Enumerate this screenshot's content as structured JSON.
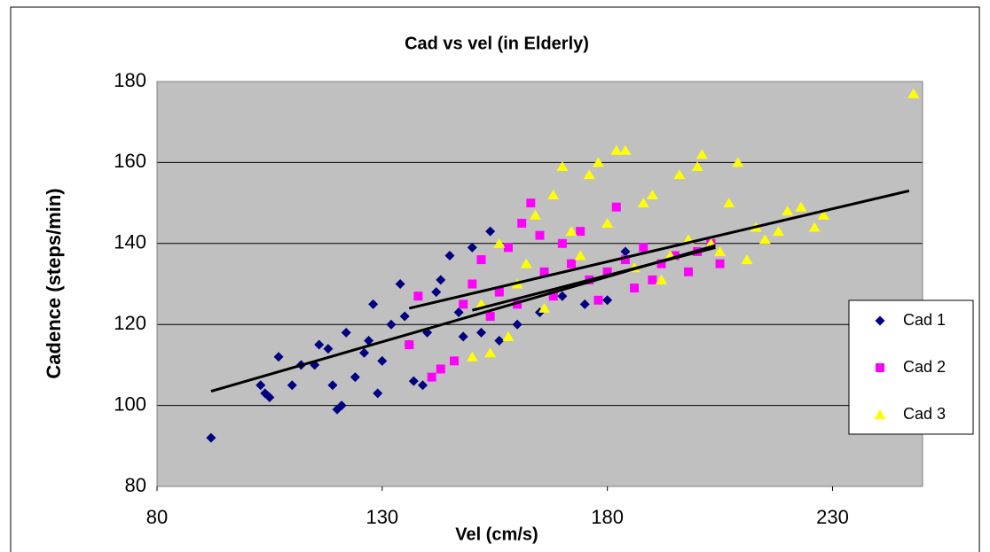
{
  "chart_data": {
    "type": "scatter",
    "title": "Cad vs vel (in Elderly)",
    "x_label": "Vel (cm/s)",
    "y_label": "Cadence (steps/min)",
    "xlim": [
      80,
      250
    ],
    "xticks": [
      80,
      130,
      180,
      230
    ],
    "ylim": [
      80,
      180
    ],
    "yticks": [
      80,
      100,
      120,
      140,
      160,
      180
    ],
    "grid": true,
    "legend": "right",
    "series": [
      {
        "name": "Cad 1",
        "color": "#000080",
        "marker": "diamond",
        "x": [
          92,
          103,
          104,
          105,
          107,
          110,
          112,
          115,
          116,
          118,
          119,
          120,
          121,
          122,
          124,
          126,
          127,
          128,
          129,
          130,
          132,
          134,
          135,
          136,
          137,
          139,
          140,
          142,
          143,
          145,
          147,
          148,
          150,
          152,
          154,
          156,
          160,
          165,
          170,
          175,
          180,
          184
        ],
        "values": [
          92,
          105,
          103,
          102,
          112,
          105,
          110,
          110,
          115,
          114,
          105,
          99,
          100,
          118,
          107,
          113,
          116,
          125,
          103,
          111,
          120,
          130,
          122,
          115,
          106,
          105,
          118,
          128,
          131,
          137,
          123,
          117,
          139,
          118,
          143,
          116,
          120,
          123,
          127,
          125,
          126,
          138
        ]
      },
      {
        "name": "Cad 2",
        "color": "#ff00ff",
        "marker": "square",
        "x": [
          136,
          138,
          141,
          143,
          146,
          148,
          150,
          152,
          154,
          156,
          158,
          160,
          161,
          163,
          165,
          166,
          168,
          170,
          172,
          174,
          176,
          178,
          180,
          182,
          184,
          186,
          188,
          190,
          192,
          195,
          198,
          200,
          203,
          205
        ],
        "values": [
          115,
          127,
          107,
          109,
          111,
          125,
          130,
          136,
          122,
          128,
          139,
          125,
          145,
          150,
          142,
          133,
          127,
          140,
          135,
          143,
          131,
          126,
          133,
          149,
          136,
          129,
          139,
          131,
          135,
          137,
          133,
          138,
          140,
          135
        ]
      },
      {
        "name": "Cad 3",
        "color": "#ffff00",
        "marker": "triangle",
        "x": [
          150,
          152,
          154,
          156,
          158,
          160,
          162,
          164,
          166,
          168,
          170,
          172,
          174,
          176,
          178,
          180,
          182,
          184,
          186,
          188,
          190,
          192,
          194,
          196,
          198,
          200,
          201,
          203,
          205,
          207,
          209,
          211,
          213,
          215,
          218,
          220,
          223,
          226,
          228,
          248
        ],
        "values": [
          112,
          125,
          113,
          140,
          117,
          130,
          135,
          147,
          124,
          152,
          159,
          143,
          137,
          157,
          160,
          145,
          163,
          163,
          134,
          150,
          152,
          131,
          137,
          157,
          141,
          159,
          162,
          140,
          138,
          150,
          160,
          136,
          144,
          141,
          143,
          148,
          149,
          144,
          147,
          177
        ]
      }
    ],
    "trendlines": [
      {
        "x": [
          92,
          204
        ],
        "values": [
          103.5,
          139.5
        ]
      },
      {
        "x": [
          136,
          247
        ],
        "values": [
          124,
          153
        ]
      },
      {
        "x": [
          150,
          204
        ],
        "values": [
          123.5,
          139
        ]
      }
    ]
  }
}
